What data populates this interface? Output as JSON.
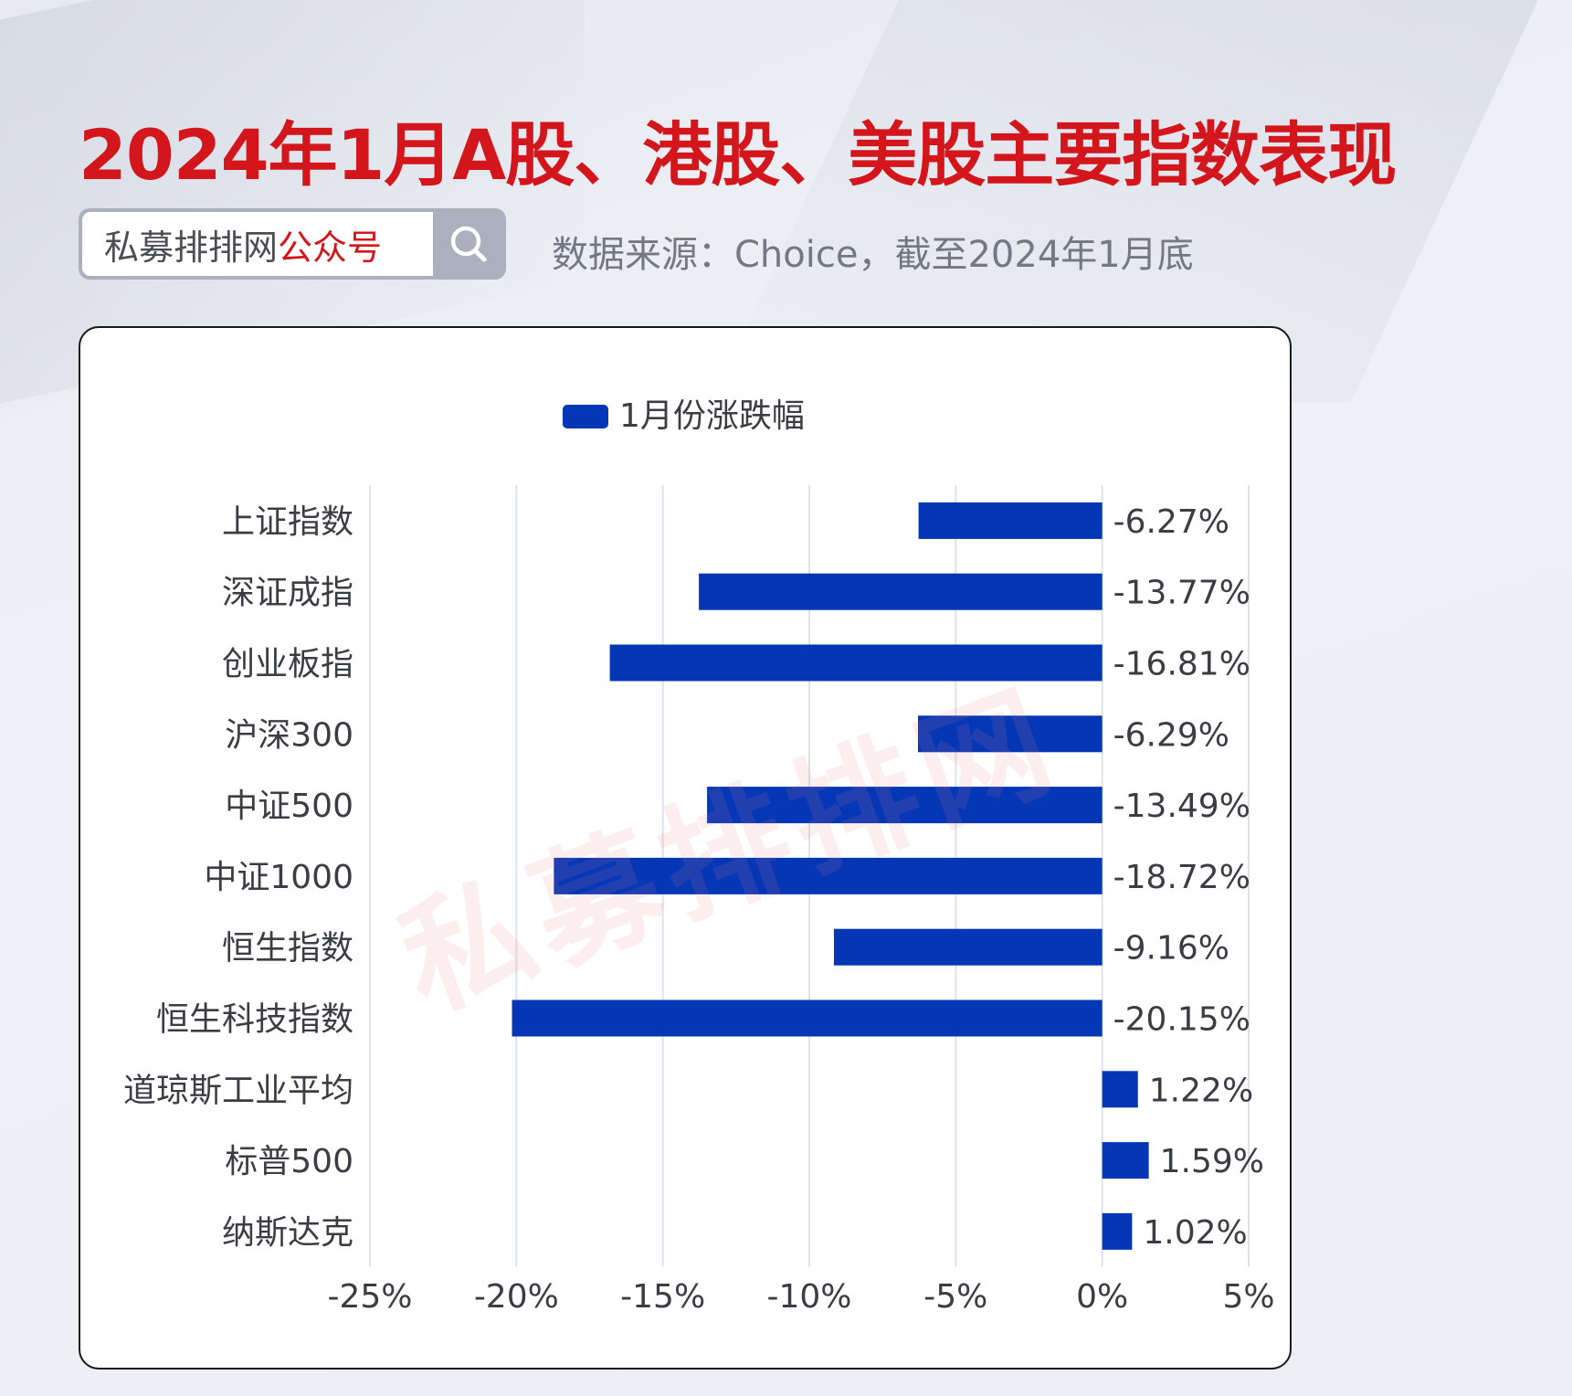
{
  "header": {
    "title": "2024年1月A股、港股、美股主要指数表现",
    "source_note": "数据来源：Choice，截至2024年1月底"
  },
  "search": {
    "label_main": "私募排排网",
    "label_highlight": "公众号",
    "icon": "search-icon"
  },
  "watermark": "私募排排网",
  "colors": {
    "title": "#d3161c",
    "bar": "#0436b6",
    "accent_red": "#d3161c"
  },
  "chart_data": {
    "type": "bar",
    "orientation": "horizontal",
    "categories": [
      "上证指数",
      "深证成指",
      "创业板指",
      "沪深300",
      "中证500",
      "中证1000",
      "恒生指数",
      "恒生科技指数",
      "道琼斯工业平均",
      "标普500",
      "纳斯达克"
    ],
    "series": [
      {
        "name": "1月份涨跌幅",
        "values": [
          -6.27,
          -13.77,
          -16.81,
          -6.29,
          -13.49,
          -18.72,
          -9.16,
          -20.15,
          1.22,
          1.59,
          1.02
        ]
      }
    ],
    "data_labels": [
      "-6.27%",
      "-13.77%",
      "-16.81%",
      "-6.29%",
      "-13.49%",
      "-18.72%",
      "-9.16%",
      "-20.15%",
      "1.22%",
      "1.59%",
      "1.02%"
    ],
    "xlim": [
      -25,
      5
    ],
    "xticks": [
      -25,
      -20,
      -15,
      -10,
      -5,
      0,
      5
    ],
    "xtick_labels": [
      "-25%",
      "-20%",
      "-15%",
      "-10%",
      "-5%",
      "0%",
      "5%"
    ],
    "grid": true,
    "legend_position": "top-center"
  }
}
